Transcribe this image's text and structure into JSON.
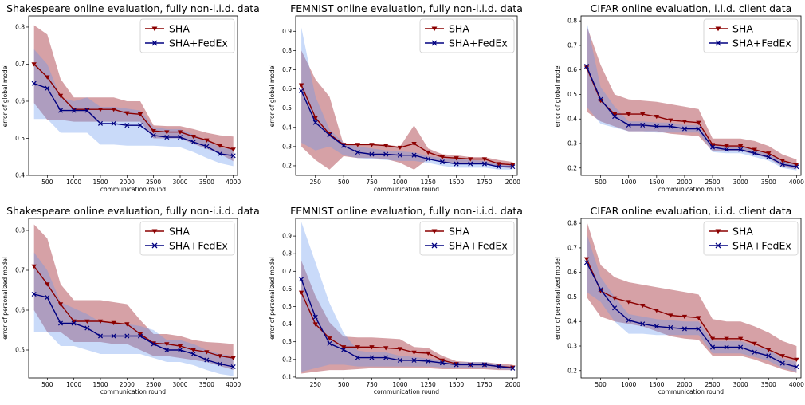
{
  "colors": {
    "sha": "#8b0000",
    "fedex": "#000080",
    "sha_band": "#b5545c",
    "fedex_band": "#6495ed"
  },
  "chart_data": [
    {
      "type": "line",
      "title": "Shakespeare online evaluation, fully non-i.i.d. data",
      "xlabel": "communication round",
      "ylabel": "error of global model",
      "xlim": [
        150,
        4080
      ],
      "ylim": [
        0.4,
        0.83
      ],
      "xticks": [
        500,
        1000,
        1500,
        2000,
        2500,
        3000,
        3500,
        4000
      ],
      "yticks": [
        0.4,
        0.5,
        0.6,
        0.7,
        0.8
      ],
      "legend": "top-right",
      "x": [
        250,
        500,
        750,
        1000,
        1250,
        1500,
        1750,
        2000,
        2250,
        2500,
        2750,
        3000,
        3250,
        3500,
        3750,
        4000
      ],
      "series": [
        {
          "name": "SHA",
          "values": [
            0.7,
            0.665,
            0.615,
            0.578,
            0.578,
            0.578,
            0.578,
            0.568,
            0.565,
            0.52,
            0.517,
            0.517,
            0.505,
            0.495,
            0.48,
            0.47
          ],
          "upper": [
            0.805,
            0.78,
            0.66,
            0.61,
            0.61,
            0.61,
            0.61,
            0.6,
            0.6,
            0.535,
            0.533,
            0.533,
            0.525,
            0.515,
            0.508,
            0.505
          ],
          "lower": [
            0.595,
            0.55,
            0.55,
            0.545,
            0.545,
            0.545,
            0.545,
            0.545,
            0.545,
            0.5,
            0.5,
            0.5,
            0.485,
            0.472,
            0.458,
            0.438
          ]
        },
        {
          "name": "SHA+FedEx",
          "values": [
            0.648,
            0.635,
            0.575,
            0.575,
            0.575,
            0.54,
            0.54,
            0.535,
            0.535,
            0.508,
            0.503,
            0.503,
            0.49,
            0.478,
            0.458,
            0.453
          ],
          "upper": [
            0.74,
            0.7,
            0.61,
            0.6,
            0.61,
            0.585,
            0.585,
            0.58,
            0.575,
            0.53,
            0.525,
            0.525,
            0.51,
            0.495,
            0.475,
            0.47
          ],
          "lower": [
            0.552,
            0.552,
            0.515,
            0.515,
            0.515,
            0.483,
            0.483,
            0.48,
            0.48,
            0.48,
            0.478,
            0.476,
            0.463,
            0.447,
            0.433,
            0.425
          ]
        }
      ]
    },
    {
      "type": "line",
      "title": "FEMNIST online evaluation, fully non-i.i.d. data",
      "xlabel": "communication round",
      "ylabel": "error of global model",
      "xlim": [
        75,
        2040
      ],
      "ylim": [
        0.15,
        0.98
      ],
      "xticks": [
        250,
        500,
        750,
        1000,
        1250,
        1500,
        1750,
        2000
      ],
      "yticks": [
        0.2,
        0.3,
        0.4,
        0.5,
        0.6,
        0.7,
        0.8,
        0.9
      ],
      "legend": "top-right",
      "x": [
        125,
        250,
        375,
        500,
        625,
        750,
        875,
        1000,
        1125,
        1250,
        1375,
        1500,
        1625,
        1750,
        1875,
        2000
      ],
      "series": [
        {
          "name": "SHA",
          "values": [
            0.62,
            0.45,
            0.365,
            0.31,
            0.31,
            0.31,
            0.305,
            0.295,
            0.315,
            0.27,
            0.245,
            0.24,
            0.235,
            0.235,
            0.21,
            0.205
          ],
          "upper": [
            0.8,
            0.65,
            0.56,
            0.31,
            0.31,
            0.31,
            0.31,
            0.3,
            0.41,
            0.29,
            0.26,
            0.255,
            0.245,
            0.245,
            0.23,
            0.22
          ],
          "lower": [
            0.3,
            0.23,
            0.18,
            0.25,
            0.24,
            0.24,
            0.235,
            0.215,
            0.18,
            0.235,
            0.22,
            0.215,
            0.21,
            0.21,
            0.195,
            0.185
          ]
        },
        {
          "name": "SHA+FedEx",
          "values": [
            0.59,
            0.425,
            0.36,
            0.305,
            0.27,
            0.26,
            0.26,
            0.255,
            0.255,
            0.235,
            0.22,
            0.21,
            0.21,
            0.21,
            0.195,
            0.195
          ],
          "upper": [
            0.92,
            0.56,
            0.39,
            0.32,
            0.3,
            0.29,
            0.28,
            0.275,
            0.27,
            0.25,
            0.24,
            0.235,
            0.23,
            0.225,
            0.21,
            0.205
          ],
          "lower": [
            0.32,
            0.28,
            0.3,
            0.255,
            0.24,
            0.235,
            0.23,
            0.225,
            0.225,
            0.215,
            0.2,
            0.19,
            0.19,
            0.19,
            0.18,
            0.18
          ]
        }
      ]
    },
    {
      "type": "line",
      "title": "CIFAR online evaluation, i.i.d. client data",
      "xlabel": "communication round",
      "ylabel": "error of global model",
      "xlim": [
        150,
        4080
      ],
      "ylim": [
        0.17,
        0.82
      ],
      "xticks": [
        500,
        1000,
        1500,
        2000,
        2500,
        3000,
        3500,
        4000
      ],
      "yticks": [
        0.2,
        0.3,
        0.4,
        0.5,
        0.6,
        0.7,
        0.8
      ],
      "legend": "top-right",
      "x": [
        250,
        500,
        750,
        1000,
        1250,
        1500,
        1750,
        2000,
        2250,
        2500,
        2750,
        3000,
        3250,
        3500,
        3750,
        4000
      ],
      "series": [
        {
          "name": "SHA",
          "values": [
            0.61,
            0.475,
            0.42,
            0.42,
            0.42,
            0.41,
            0.395,
            0.39,
            0.385,
            0.295,
            0.29,
            0.29,
            0.275,
            0.26,
            0.23,
            0.215
          ],
          "upper": [
            0.78,
            0.62,
            0.5,
            0.48,
            0.475,
            0.47,
            0.46,
            0.45,
            0.44,
            0.32,
            0.32,
            0.32,
            0.31,
            0.29,
            0.255,
            0.235
          ],
          "lower": [
            0.43,
            0.39,
            0.37,
            0.35,
            0.35,
            0.35,
            0.34,
            0.335,
            0.33,
            0.27,
            0.27,
            0.27,
            0.255,
            0.24,
            0.205,
            0.195
          ]
        },
        {
          "name": "SHA+FedEx",
          "values": [
            0.615,
            0.48,
            0.41,
            0.375,
            0.375,
            0.37,
            0.37,
            0.36,
            0.36,
            0.285,
            0.275,
            0.275,
            0.26,
            0.245,
            0.215,
            0.205
          ],
          "upper": [
            0.8,
            0.53,
            0.45,
            0.39,
            0.39,
            0.385,
            0.385,
            0.375,
            0.375,
            0.3,
            0.29,
            0.29,
            0.275,
            0.26,
            0.23,
            0.22
          ],
          "lower": [
            0.45,
            0.38,
            0.365,
            0.35,
            0.35,
            0.345,
            0.345,
            0.345,
            0.345,
            0.265,
            0.26,
            0.26,
            0.245,
            0.23,
            0.2,
            0.19
          ]
        }
      ]
    },
    {
      "type": "line",
      "title": "Shakespeare online evaluation, fully non-i.i.d. data",
      "xlabel": "communication round",
      "ylabel": "error of personalized model",
      "xlim": [
        150,
        4080
      ],
      "ylim": [
        0.43,
        0.83
      ],
      "xticks": [
        500,
        1000,
        1500,
        2000,
        2500,
        3000,
        3500,
        4000
      ],
      "yticks": [
        0.5,
        0.6,
        0.7,
        0.8
      ],
      "legend": "top-right",
      "x": [
        250,
        500,
        750,
        1000,
        1250,
        1500,
        1750,
        2000,
        2250,
        2500,
        2750,
        3000,
        3250,
        3500,
        3750,
        4000
      ],
      "series": [
        {
          "name": "SHA",
          "values": [
            0.71,
            0.665,
            0.615,
            0.572,
            0.572,
            0.572,
            0.568,
            0.565,
            0.54,
            0.517,
            0.515,
            0.51,
            0.5,
            0.495,
            0.485,
            0.48
          ],
          "upper": [
            0.815,
            0.78,
            0.665,
            0.625,
            0.625,
            0.625,
            0.62,
            0.615,
            0.575,
            0.54,
            0.54,
            0.535,
            0.525,
            0.52,
            0.518,
            0.515
          ],
          "lower": [
            0.6,
            0.545,
            0.545,
            0.52,
            0.52,
            0.52,
            0.515,
            0.515,
            0.5,
            0.485,
            0.485,
            0.48,
            0.475,
            0.47,
            0.46,
            0.45
          ]
        },
        {
          "name": "SHA+FedEx",
          "values": [
            0.64,
            0.632,
            0.567,
            0.567,
            0.555,
            0.535,
            0.535,
            0.535,
            0.535,
            0.515,
            0.5,
            0.5,
            0.49,
            0.475,
            0.465,
            0.458
          ],
          "upper": [
            0.745,
            0.7,
            0.62,
            0.605,
            0.59,
            0.57,
            0.57,
            0.565,
            0.56,
            0.55,
            0.525,
            0.525,
            0.515,
            0.5,
            0.49,
            0.485
          ],
          "lower": [
            0.545,
            0.545,
            0.51,
            0.51,
            0.5,
            0.49,
            0.49,
            0.49,
            0.49,
            0.48,
            0.47,
            0.47,
            0.462,
            0.45,
            0.44,
            0.435
          ]
        }
      ]
    },
    {
      "type": "line",
      "title": "FEMNIST online evaluation, fully non-i.i.d. data",
      "xlabel": "communication round",
      "ylabel": "error of personalized model",
      "xlim": [
        75,
        2040
      ],
      "ylim": [
        0.095,
        1.0
      ],
      "xticks": [
        250,
        500,
        750,
        1000,
        1250,
        1500,
        1750,
        2000
      ],
      "yticks": [
        0.1,
        0.2,
        0.3,
        0.4,
        0.5,
        0.6,
        0.7,
        0.8,
        0.9
      ],
      "legend": "top-right",
      "x": [
        125,
        250,
        375,
        500,
        625,
        750,
        875,
        1000,
        1125,
        1250,
        1375,
        1500,
        1625,
        1750,
        1875,
        2000
      ],
      "series": [
        {
          "name": "SHA",
          "values": [
            0.58,
            0.4,
            0.32,
            0.27,
            0.27,
            0.27,
            0.265,
            0.26,
            0.24,
            0.235,
            0.195,
            0.175,
            0.17,
            0.17,
            0.16,
            0.155
          ],
          "upper": [
            0.76,
            0.56,
            0.41,
            0.33,
            0.325,
            0.325,
            0.32,
            0.315,
            0.27,
            0.265,
            0.22,
            0.19,
            0.185,
            0.185,
            0.175,
            0.17
          ],
          "lower": [
            0.12,
            0.13,
            0.14,
            0.14,
            0.145,
            0.15,
            0.15,
            0.15,
            0.15,
            0.15,
            0.145,
            0.145,
            0.145,
            0.145,
            0.14,
            0.14
          ]
        },
        {
          "name": "SHA+FedEx",
          "values": [
            0.655,
            0.44,
            0.29,
            0.255,
            0.21,
            0.21,
            0.21,
            0.195,
            0.195,
            0.19,
            0.18,
            0.17,
            0.17,
            0.17,
            0.16,
            0.15
          ],
          "upper": [
            0.98,
            0.75,
            0.52,
            0.35,
            0.25,
            0.24,
            0.24,
            0.22,
            0.215,
            0.205,
            0.195,
            0.185,
            0.185,
            0.185,
            0.17,
            0.16
          ],
          "lower": [
            0.13,
            0.15,
            0.17,
            0.17,
            0.16,
            0.16,
            0.16,
            0.16,
            0.16,
            0.16,
            0.155,
            0.15,
            0.15,
            0.15,
            0.145,
            0.14
          ]
        }
      ]
    },
    {
      "type": "line",
      "title": "CIFAR online evaluation, i.i.d. client data",
      "xlabel": "communication round",
      "ylabel": "error of personalized model",
      "xlim": [
        150,
        4080
      ],
      "ylim": [
        0.17,
        0.82
      ],
      "xticks": [
        500,
        1000,
        1500,
        2000,
        2500,
        3000,
        3500,
        4000
      ],
      "yticks": [
        0.2,
        0.3,
        0.4,
        0.5,
        0.6,
        0.7,
        0.8
      ],
      "legend": "top-right",
      "x": [
        250,
        500,
        750,
        1000,
        1250,
        1500,
        1750,
        2000,
        2250,
        2500,
        2750,
        3000,
        3250,
        3500,
        3750,
        4000
      ],
      "series": [
        {
          "name": "SHA",
          "values": [
            0.655,
            0.525,
            0.495,
            0.48,
            0.465,
            0.445,
            0.425,
            0.42,
            0.415,
            0.33,
            0.33,
            0.33,
            0.31,
            0.285,
            0.26,
            0.245
          ],
          "upper": [
            0.81,
            0.63,
            0.58,
            0.56,
            0.55,
            0.54,
            0.53,
            0.52,
            0.51,
            0.41,
            0.4,
            0.4,
            0.38,
            0.355,
            0.32,
            0.3
          ],
          "lower": [
            0.5,
            0.42,
            0.4,
            0.39,
            0.38,
            0.36,
            0.34,
            0.33,
            0.325,
            0.26,
            0.26,
            0.26,
            0.245,
            0.225,
            0.205,
            0.19
          ]
        },
        {
          "name": "SHA+FedEx",
          "values": [
            0.64,
            0.53,
            0.455,
            0.405,
            0.39,
            0.38,
            0.375,
            0.37,
            0.37,
            0.295,
            0.295,
            0.295,
            0.275,
            0.26,
            0.23,
            0.215
          ],
          "upper": [
            0.76,
            0.58,
            0.5,
            0.43,
            0.42,
            0.41,
            0.405,
            0.4,
            0.4,
            0.32,
            0.32,
            0.32,
            0.3,
            0.285,
            0.25,
            0.235
          ],
          "lower": [
            0.52,
            0.48,
            0.4,
            0.35,
            0.35,
            0.345,
            0.345,
            0.345,
            0.345,
            0.27,
            0.27,
            0.27,
            0.255,
            0.24,
            0.21,
            0.195
          ]
        }
      ]
    }
  ]
}
